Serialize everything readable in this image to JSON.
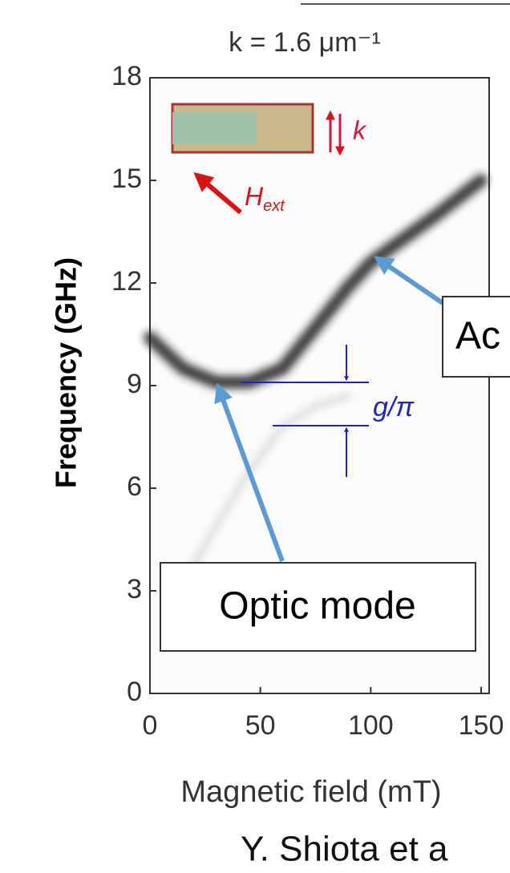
{
  "chart_data": {
    "type": "line",
    "title": "k = 1.6 μm⁻¹",
    "x_label": "Magnetic field (mT)",
    "y_label": "Frequency (GHz)",
    "xlim": [
      0,
      150
    ],
    "xticks": [
      0,
      50,
      100,
      150
    ],
    "ylim": [
      0,
      18
    ],
    "yticks": [
      0,
      3,
      6,
      9,
      12,
      15,
      18
    ],
    "series": [
      {
        "color": "#1a1a1a",
        "x": [
          0,
          15,
          30,
          45,
          60,
          75,
          90,
          100,
          115,
          130,
          150
        ],
        "values": [
          10.4,
          9.5,
          9.1,
          9.1,
          9.5,
          10.7,
          11.9,
          12.6,
          13.3,
          14.0,
          15.0
        ]
      },
      {
        "color": "#9a9a9a",
        "x": [
          15,
          30,
          45,
          60,
          75,
          90
        ],
        "values": [
          3.2,
          4.9,
          6.5,
          7.8,
          8.4,
          8.7
        ]
      }
    ],
    "annotations": {
      "optic": "Optic mode",
      "acoustic": "Ac",
      "coupling": "g/π",
      "wavevector": "k",
      "field": {
        "main": "H",
        "sub": "ext"
      }
    },
    "credit": "Y. Shiota et a"
  }
}
